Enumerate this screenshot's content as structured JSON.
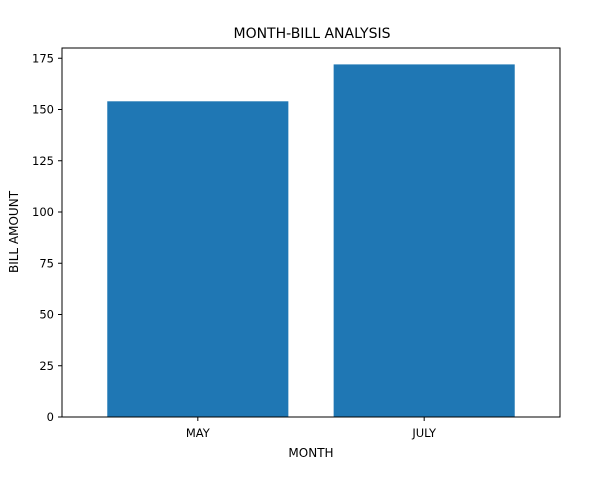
{
  "chart_data": {
    "type": "bar",
    "title": "MONTH-BILL ANALYSIS",
    "xlabel": "MONTH",
    "ylabel": "BILL AMOUNT",
    "categories": [
      "MAY",
      "JULY"
    ],
    "values": [
      154,
      172
    ],
    "ylim": [
      0,
      180
    ],
    "yticks": [
      0,
      25,
      50,
      75,
      100,
      125,
      150,
      175
    ],
    "bar_color": "#1f77b4",
    "grid": false,
    "legend": "none"
  }
}
